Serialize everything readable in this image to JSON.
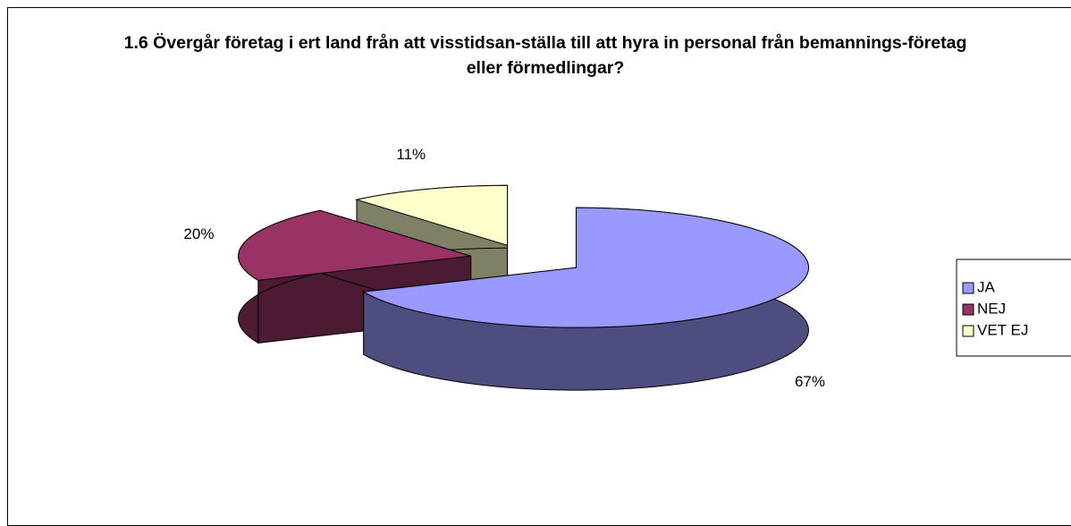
{
  "chart_data": {
    "type": "pie3d",
    "title": "1.6 Övergår företag i ert land från att visstidsan-ställa till att hyra in personal från bemannings-företag eller förmedlingar?",
    "categories": [
      "JA",
      "NEJ",
      "VET EJ"
    ],
    "values": [
      67,
      20,
      11
    ],
    "value_labels": [
      "67%",
      "20%",
      "11%"
    ],
    "colors": [
      "#9999ff",
      "#993366",
      "#ffffcc"
    ],
    "exploded": [
      true,
      true,
      true
    ],
    "legend": "right"
  }
}
